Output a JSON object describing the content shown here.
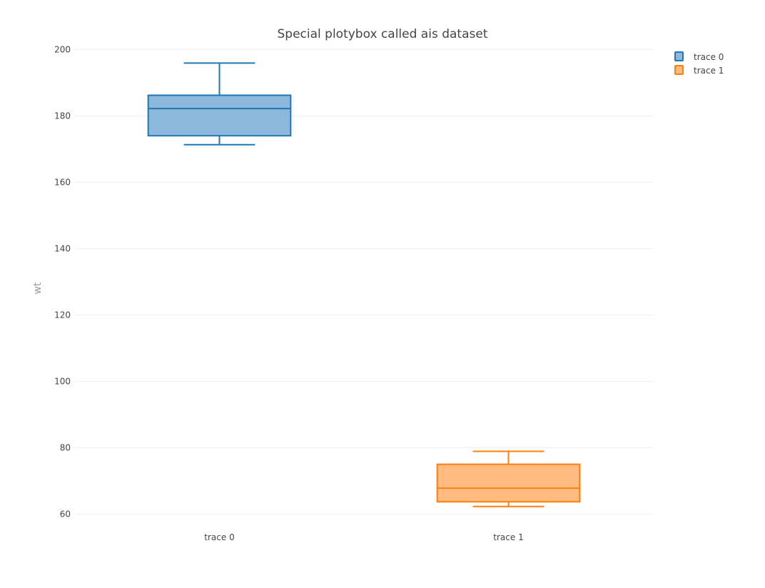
{
  "chart_data": {
    "type": "box",
    "title": "Special plotybox called ais dataset",
    "xlabel": "",
    "ylabel": "wt",
    "ylim": [
      56,
      202
    ],
    "yticks": [
      60,
      80,
      100,
      120,
      140,
      160,
      180,
      200
    ],
    "ytick_labels": [
      "60",
      "80",
      "100",
      "120",
      "140",
      "160",
      "180",
      "200"
    ],
    "grid": true,
    "legend_position": "top-right",
    "categories": [
      "trace 0",
      "trace 1"
    ],
    "series": [
      {
        "name": "trace 0",
        "min": 171.3,
        "q1": 174,
        "median": 182.2,
        "q3": 186.2,
        "max": 195.9,
        "fill_color": "#8cb8db",
        "line_color": "#1f77b4"
      },
      {
        "name": "trace 1",
        "min": 62.3,
        "q1": 63.7,
        "median": 67.8,
        "q3": 75,
        "max": 78.9,
        "fill_color": "#ffbb80",
        "line_color": "#ff7f0e"
      }
    ]
  }
}
